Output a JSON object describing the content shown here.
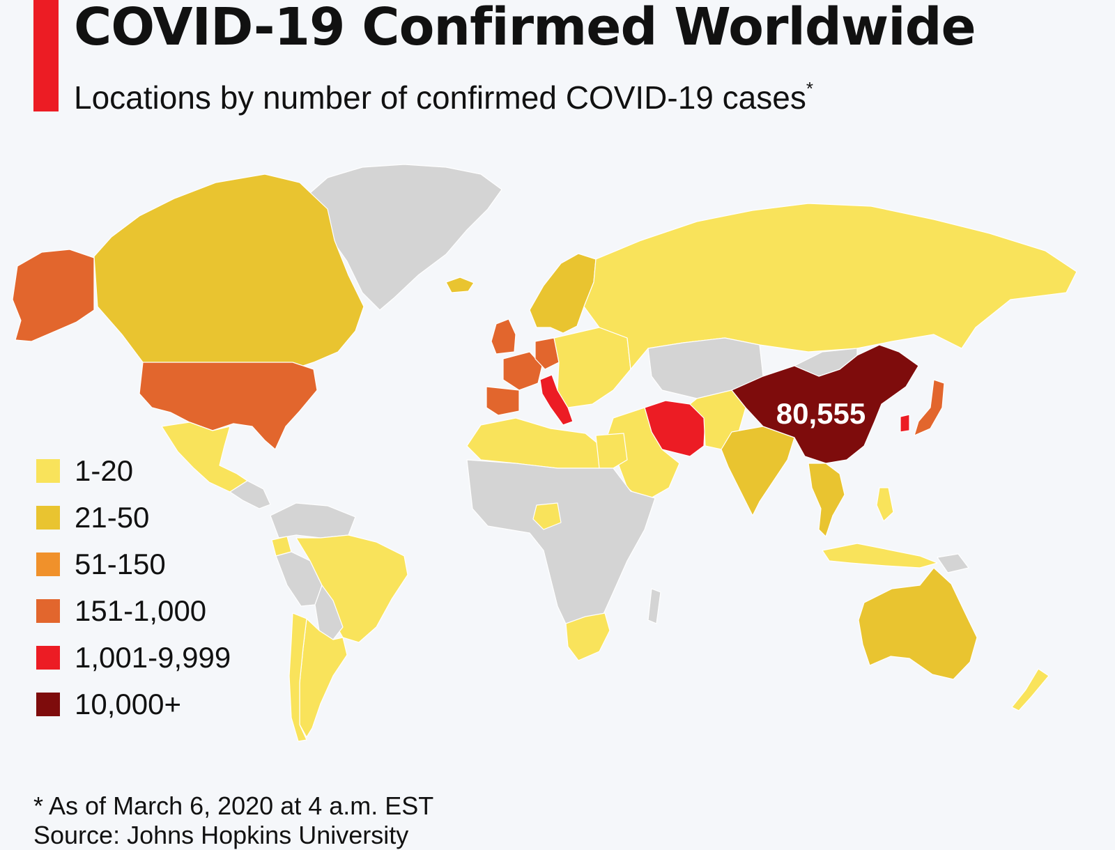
{
  "header": {
    "title": "COVID-19 Confirmed Worldwide",
    "subtitle": "Locations by number of confirmed COVID-19 cases",
    "subtitle_marker": "*"
  },
  "colors": {
    "accent": "#ec1c24",
    "no_data": "#d4d4d4",
    "background": "#f5f7fa"
  },
  "legend": [
    {
      "label": "1-20",
      "color": "#f9e35b"
    },
    {
      "label": "21-50",
      "color": "#e9c430"
    },
    {
      "label": "51-150",
      "color": "#f0912b"
    },
    {
      "label": "151-1,000",
      "color": "#e2662d"
    },
    {
      "label": "1,001-9,999",
      "color": "#ec1c24"
    },
    {
      "label": "10,000+",
      "color": "#7e0c0c"
    }
  ],
  "map": {
    "highlight_label": "80,555",
    "regions": [
      {
        "name": "Greenland",
        "tier": "none"
      },
      {
        "name": "Canada",
        "tier": "21-50"
      },
      {
        "name": "Alaska (United States)",
        "tier": "151-1,000"
      },
      {
        "name": "United States",
        "tier": "151-1,000"
      },
      {
        "name": "Mexico",
        "tier": "1-20"
      },
      {
        "name": "Central America",
        "tier": "none"
      },
      {
        "name": "Colombia / Venezuela",
        "tier": "none"
      },
      {
        "name": "Ecuador",
        "tier": "1-20"
      },
      {
        "name": "Peru",
        "tier": "none"
      },
      {
        "name": "Brazil",
        "tier": "1-20"
      },
      {
        "name": "Bolivia / Paraguay",
        "tier": "none"
      },
      {
        "name": "Argentina",
        "tier": "1-20"
      },
      {
        "name": "Chile",
        "tier": "1-20"
      },
      {
        "name": "Iceland",
        "tier": "21-50"
      },
      {
        "name": "Scandinavia",
        "tier": "21-50"
      },
      {
        "name": "United Kingdom",
        "tier": "151-1,000"
      },
      {
        "name": "France",
        "tier": "151-1,000"
      },
      {
        "name": "Germany",
        "tier": "151-1,000"
      },
      {
        "name": "Spain",
        "tier": "151-1,000"
      },
      {
        "name": "Italy",
        "tier": "1,001-9,999"
      },
      {
        "name": "Eastern Europe",
        "tier": "1-20"
      },
      {
        "name": "Russia",
        "tier": "1-20"
      },
      {
        "name": "Central Asia",
        "tier": "none"
      },
      {
        "name": "Iran",
        "tier": "1,001-9,999"
      },
      {
        "name": "Middle East",
        "tier": "1-20"
      },
      {
        "name": "Pakistan / Afghanistan",
        "tier": "1-20"
      },
      {
        "name": "India",
        "tier": "21-50"
      },
      {
        "name": "China",
        "tier": "10,000+"
      },
      {
        "name": "Mongolia",
        "tier": "none"
      },
      {
        "name": "South Korea",
        "tier": "1,001-9,999"
      },
      {
        "name": "Japan",
        "tier": "151-1,000"
      },
      {
        "name": "Southeast Asia",
        "tier": "21-50"
      },
      {
        "name": "Indonesia",
        "tier": "1-20"
      },
      {
        "name": "Philippines",
        "tier": "1-20"
      },
      {
        "name": "New Guinea",
        "tier": "none"
      },
      {
        "name": "North Africa",
        "tier": "1-20"
      },
      {
        "name": "Egypt",
        "tier": "1-20"
      },
      {
        "name": "Africa",
        "tier": "none"
      },
      {
        "name": "Nigeria",
        "tier": "1-20"
      },
      {
        "name": "South Africa",
        "tier": "1-20"
      },
      {
        "name": "Madagascar",
        "tier": "none"
      },
      {
        "name": "Australia",
        "tier": "21-50"
      },
      {
        "name": "New Zealand",
        "tier": "1-20"
      }
    ]
  },
  "footnote": "* As of March 6, 2020 at 4 a.m. EST",
  "source": "Source: Johns Hopkins University"
}
